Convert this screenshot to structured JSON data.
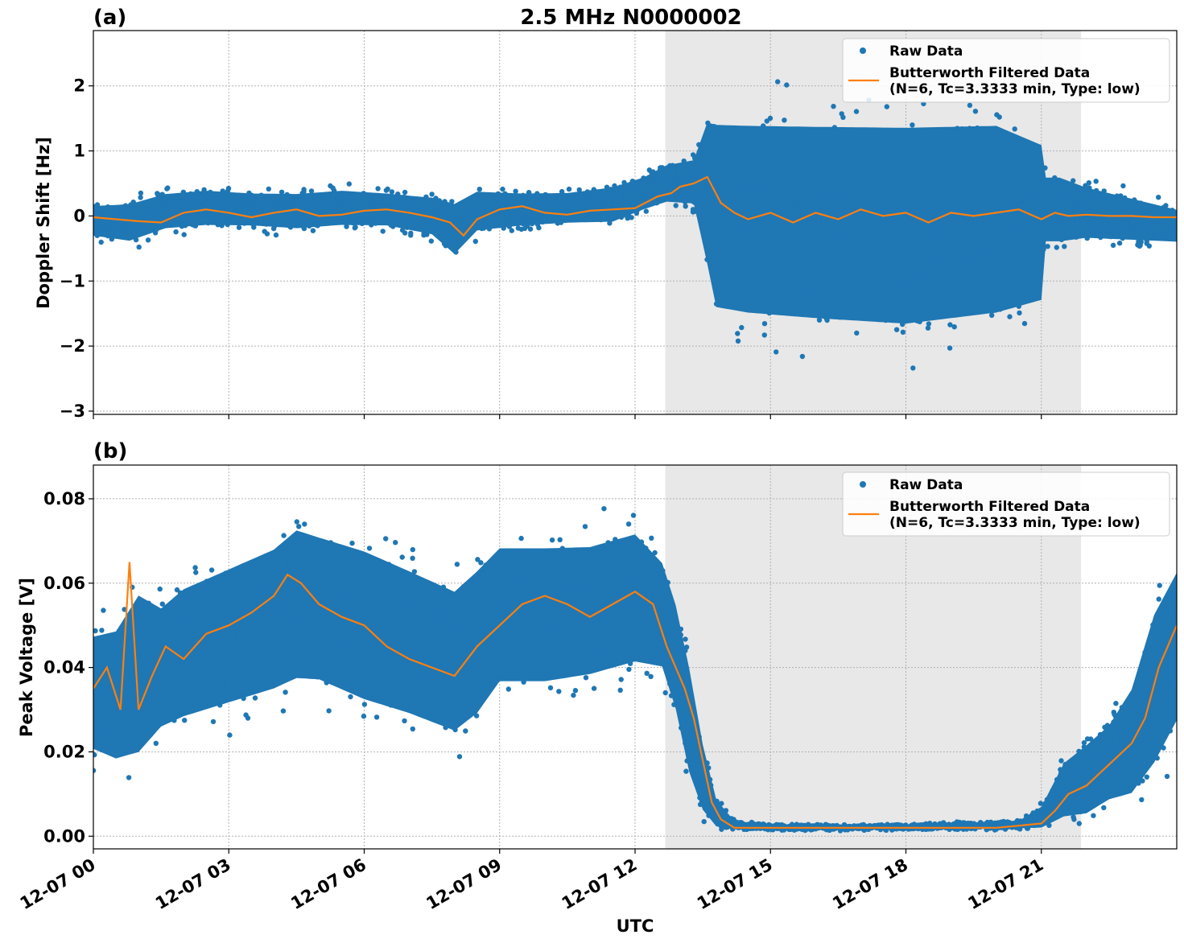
{
  "chart_data": [
    {
      "type": "scatter",
      "panel_label": "(a)",
      "title": "2.5 MHz N0000002",
      "xlabel": "",
      "ylabel": "Doppler Shift [Hz]",
      "ylim": [
        -3.05,
        2.85
      ],
      "xlim": [
        0,
        24
      ],
      "x_unit": "hours UTC on 12-07",
      "yticks": [
        {
          "value": 2,
          "label": "2"
        },
        {
          "value": 1,
          "label": "1"
        },
        {
          "value": 0,
          "label": "0"
        },
        {
          "value": -1,
          "label": "−1"
        },
        {
          "value": -2,
          "label": "−2"
        },
        {
          "value": -3,
          "label": "−3"
        }
      ],
      "shaded_region": [
        12.67,
        21.88
      ],
      "grid": true,
      "legend_position": "top-right",
      "series": [
        {
          "name": "Raw Data",
          "kind": "scatter",
          "color": "#1f77b4",
          "envelope": {
            "x": [
              0,
              0.8,
              1.6,
              2.5,
              3.5,
              4.5,
              5.5,
              6.5,
              7.5,
              8.0,
              8.5,
              9.5,
              10.5,
              11.5,
              12.2,
              12.7,
              13.3,
              13.6,
              13.8,
              14.5,
              16,
              18,
              20,
              21.0,
              21.1,
              21.4,
              22,
              23,
              24
            ],
            "upper": [
              0.25,
              0.3,
              0.45,
              0.5,
              0.45,
              0.45,
              0.5,
              0.45,
              0.4,
              0.35,
              0.5,
              0.45,
              0.45,
              0.55,
              0.7,
              0.9,
              1.0,
              1.9,
              2.0,
              2.0,
              2.0,
              2.0,
              2.0,
              1.6,
              0.8,
              0.8,
              0.6,
              0.4,
              0.2
            ],
            "lower": [
              -0.4,
              -0.5,
              -0.3,
              -0.25,
              -0.25,
              -0.3,
              -0.25,
              -0.25,
              -0.4,
              -0.75,
              -0.35,
              -0.25,
              -0.2,
              -0.2,
              0.0,
              0.1,
              0.05,
              -1.2,
              -2.0,
              -2.1,
              -2.2,
              -2.3,
              -2.1,
              -1.8,
              -0.6,
              -0.6,
              -0.5,
              -0.5,
              -0.5
            ]
          }
        },
        {
          "name": "Butterworth Filtered Data\n(N=6, Tc=3.3333 min, Type: low)",
          "kind": "line",
          "color": "#ff7f0e",
          "x": [
            0,
            0.5,
            1,
            1.5,
            2,
            2.5,
            3,
            3.5,
            4,
            4.5,
            5,
            5.5,
            6,
            6.5,
            7,
            7.5,
            7.9,
            8.2,
            8.5,
            9,
            9.5,
            10,
            10.5,
            11,
            11.5,
            12,
            12.5,
            12.8,
            13,
            13.3,
            13.6,
            13.9,
            14.2,
            14.5,
            15,
            15.5,
            16,
            16.5,
            17,
            17.5,
            18,
            18.5,
            19,
            19.5,
            20,
            20.5,
            21,
            21.3,
            21.6,
            22,
            22.5,
            23,
            23.5,
            24
          ],
          "y": [
            -0.02,
            -0.05,
            -0.08,
            -0.1,
            0.05,
            0.1,
            0.05,
            -0.02,
            0.05,
            0.1,
            0.0,
            0.02,
            0.08,
            0.1,
            0.05,
            -0.02,
            -0.1,
            -0.3,
            -0.05,
            0.1,
            0.15,
            0.05,
            0.02,
            0.08,
            0.1,
            0.12,
            0.3,
            0.35,
            0.45,
            0.5,
            0.6,
            0.2,
            0.05,
            -0.05,
            0.05,
            -0.1,
            0.05,
            -0.05,
            0.1,
            0.0,
            0.05,
            -0.1,
            0.05,
            0.0,
            0.05,
            0.1,
            -0.05,
            0.05,
            0.0,
            0.02,
            0.0,
            0.0,
            -0.02,
            -0.02
          ]
        }
      ]
    },
    {
      "type": "scatter",
      "panel_label": "(b)",
      "title": "",
      "xlabel": "UTC",
      "ylabel": "Peak Voltage [V]",
      "ylim": [
        -0.003,
        0.088
      ],
      "xlim": [
        0,
        24
      ],
      "x_unit": "hours UTC on 12-07",
      "yticks": [
        {
          "value": 0.08,
          "label": "0.08"
        },
        {
          "value": 0.06,
          "label": "0.06"
        },
        {
          "value": 0.04,
          "label": "0.04"
        },
        {
          "value": 0.02,
          "label": "0.02"
        },
        {
          "value": 0.0,
          "label": "0.00"
        }
      ],
      "xticks": [
        {
          "value": 0,
          "label": "12-07 00"
        },
        {
          "value": 3,
          "label": "12-07 03"
        },
        {
          "value": 6,
          "label": "12-07 06"
        },
        {
          "value": 9,
          "label": "12-07 09"
        },
        {
          "value": 12,
          "label": "12-07 12"
        },
        {
          "value": 15,
          "label": "12-07 15"
        },
        {
          "value": 18,
          "label": "12-07 18"
        },
        {
          "value": 21,
          "label": "12-07 21"
        }
      ],
      "shaded_region": [
        12.67,
        21.88
      ],
      "grid": true,
      "legend_position": "top-right",
      "series": [
        {
          "name": "Raw Data",
          "kind": "scatter",
          "color": "#1f77b4",
          "envelope": {
            "x": [
              0,
              0.5,
              1,
              1.5,
              2,
              3,
              4,
              4.5,
              5,
              6,
              7,
              8,
              8.5,
              9,
              10,
              11,
              12,
              12.6,
              12.9,
              13.2,
              13.5,
              13.8,
              14.2,
              15,
              18,
              20.5,
              21,
              21.5,
              22,
              22.5,
              23,
              23.5,
              24
            ],
            "upper": [
              0.053,
              0.055,
              0.065,
              0.06,
              0.065,
              0.07,
              0.075,
              0.08,
              0.078,
              0.075,
              0.07,
              0.065,
              0.07,
              0.075,
              0.075,
              0.075,
              0.078,
              0.07,
              0.06,
              0.045,
              0.025,
              0.01,
              0.004,
              0.003,
              0.003,
              0.004,
              0.008,
              0.02,
              0.025,
              0.03,
              0.04,
              0.06,
              0.07
            ],
            "lower": [
              0.015,
              0.012,
              0.012,
              0.02,
              0.022,
              0.025,
              0.028,
              0.03,
              0.03,
              0.025,
              0.022,
              0.018,
              0.022,
              0.03,
              0.03,
              0.032,
              0.035,
              0.035,
              0.025,
              0.01,
              0.003,
              0.001,
              0.0012,
              0.0013,
              0.0013,
              0.0015,
              0.001,
              0.002,
              0.002,
              0.005,
              0.005,
              0.01,
              0.02
            ]
          }
        },
        {
          "name": "Butterworth Filtered Data\n(N=6, Tc=3.3333 min, Type: low)",
          "kind": "line",
          "color": "#ff7f0e",
          "x": [
            0,
            0.3,
            0.6,
            0.8,
            1.0,
            1.3,
            1.6,
            2,
            2.5,
            3,
            3.5,
            4,
            4.3,
            4.6,
            5,
            5.5,
            6,
            6.5,
            7,
            7.5,
            8,
            8.5,
            9,
            9.5,
            10,
            10.5,
            11,
            11.5,
            12,
            12.4,
            12.7,
            12.9,
            13.1,
            13.3,
            13.5,
            13.7,
            13.9,
            14.2,
            15,
            16,
            17,
            18,
            19,
            20,
            20.5,
            21,
            21.3,
            21.6,
            22,
            22.3,
            22.6,
            23,
            23.3,
            23.6,
            24
          ],
          "y": [
            0.035,
            0.04,
            0.03,
            0.065,
            0.03,
            0.038,
            0.045,
            0.042,
            0.048,
            0.05,
            0.053,
            0.057,
            0.062,
            0.06,
            0.055,
            0.052,
            0.05,
            0.045,
            0.042,
            0.04,
            0.038,
            0.045,
            0.05,
            0.055,
            0.057,
            0.055,
            0.052,
            0.055,
            0.058,
            0.055,
            0.045,
            0.04,
            0.035,
            0.028,
            0.018,
            0.008,
            0.004,
            0.002,
            0.002,
            0.002,
            0.002,
            0.002,
            0.002,
            0.002,
            0.0025,
            0.003,
            0.006,
            0.01,
            0.012,
            0.015,
            0.018,
            0.022,
            0.028,
            0.04,
            0.05
          ]
        }
      ]
    }
  ]
}
